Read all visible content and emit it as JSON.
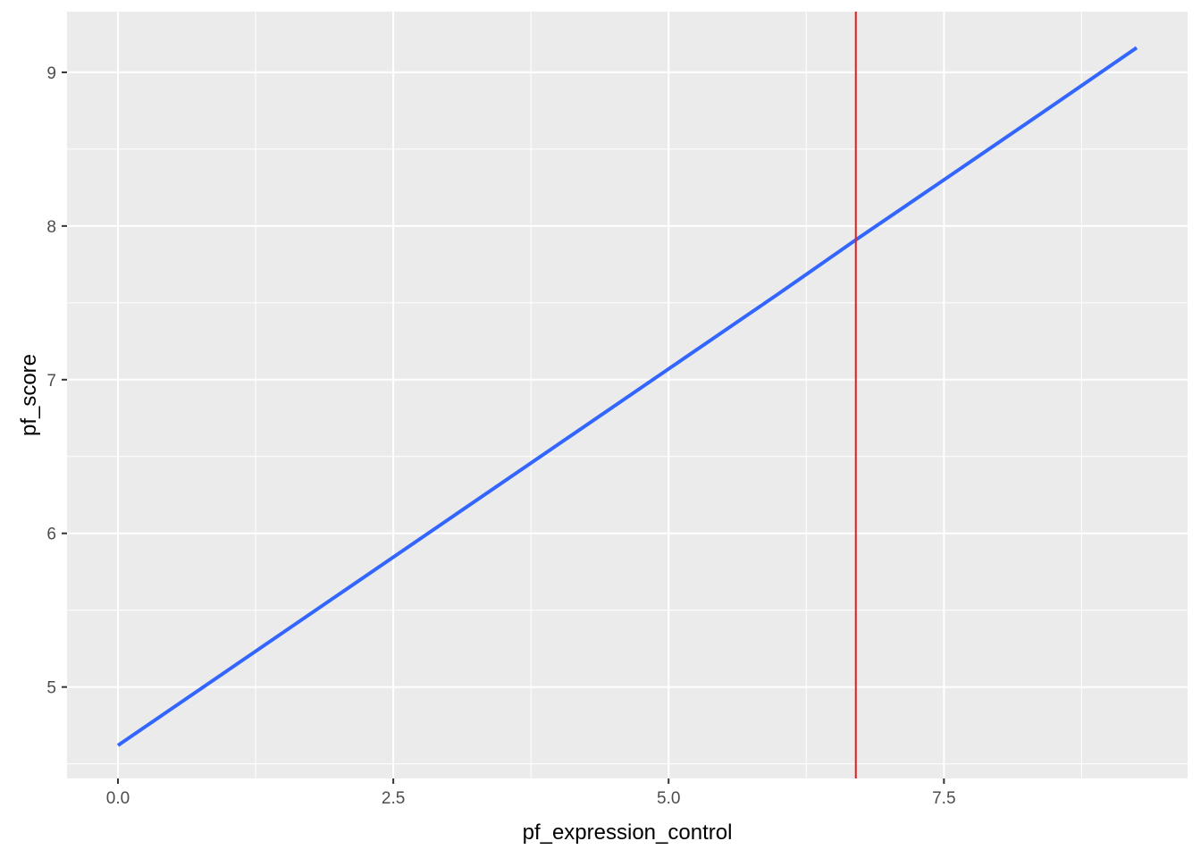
{
  "chart_data": {
    "type": "line",
    "title": "",
    "xlabel": "pf_expression_control",
    "ylabel": "pf_score",
    "xlim": [
      -0.4625,
      9.7125
    ],
    "ylim": [
      4.405,
      9.395
    ],
    "x_ticks": [
      {
        "value": 0,
        "label": "0.0"
      },
      {
        "value": 2.5,
        "label": "2.5"
      },
      {
        "value": 5,
        "label": "5.0"
      },
      {
        "value": 7.5,
        "label": "7.5"
      }
    ],
    "y_ticks": [
      {
        "value": 5,
        "label": "5"
      },
      {
        "value": 6,
        "label": "6"
      },
      {
        "value": 7,
        "label": "7"
      },
      {
        "value": 8,
        "label": "8"
      },
      {
        "value": 9,
        "label": "9"
      }
    ],
    "grid": true,
    "legend": "none",
    "series": [
      {
        "color": "#3366FF",
        "x": [
          0,
          1,
          2,
          3,
          4,
          5,
          6,
          6.7,
          7.5,
          8.5,
          9.25
        ],
        "y": [
          4.62,
          5.11,
          5.6,
          6.09,
          6.58,
          7.07,
          7.56,
          7.91,
          8.3,
          8.79,
          9.16
        ]
      }
    ],
    "vline": {
      "x": 6.7,
      "color": "#E41A1C"
    },
    "panel_background": "#EBEBEB",
    "grid_color": "#FFFFFF"
  }
}
